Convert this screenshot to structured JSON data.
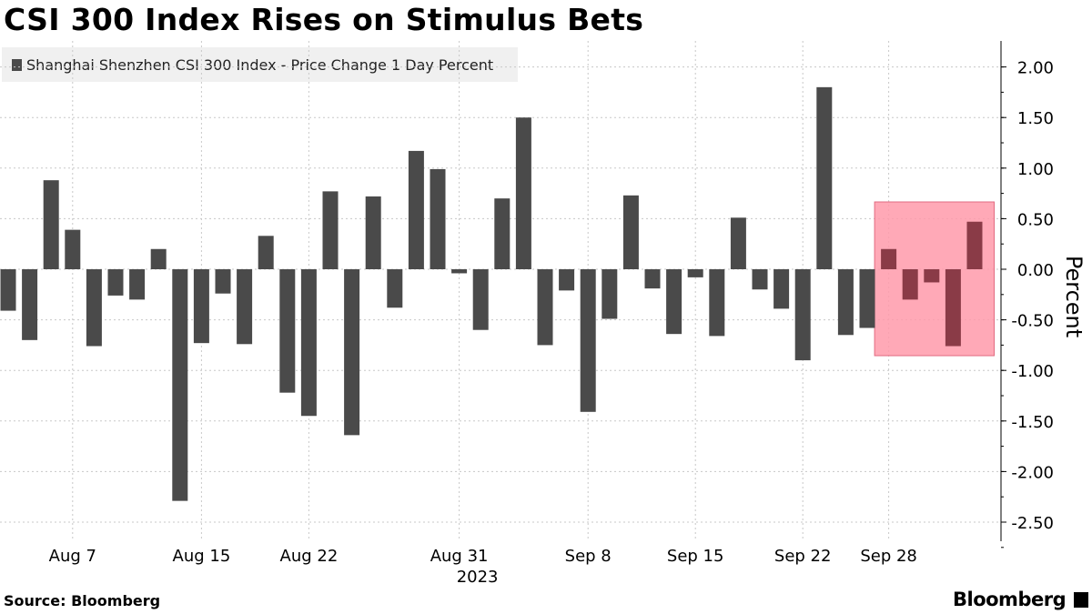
{
  "title": "CSI 300 Index Rises on Stimulus Bets",
  "source": "Source: Bloomberg",
  "brand": "Bloomberg",
  "chart_data": {
    "type": "bar",
    "title": "CSI 300 Index Rises on Stimulus Bets",
    "ylabel": "Percent",
    "xlabel": "",
    "ylim": [
      -2.75,
      2.2
    ],
    "yticks": [
      2.0,
      1.5,
      1.0,
      0.5,
      0.0,
      -0.5,
      -1.0,
      -1.5,
      -2.0,
      -2.5
    ],
    "ytick_labels": [
      "2.00",
      "1.50",
      "1.00",
      "0.50",
      "0.00",
      "-0.50",
      "-1.00",
      "-1.50",
      "-2.00",
      "-2.50"
    ],
    "grid": true,
    "legend_position": "top-left",
    "x_tick_labels": [
      "Aug 7",
      "Aug 15",
      "Aug 22",
      "Aug 31",
      "Sep 8",
      "Sep 15",
      "Sep 22",
      "Sep 28"
    ],
    "x_tick_categories": [
      "Aug 7",
      "Aug 15",
      "Aug 22",
      "Aug 31",
      "Sep 8",
      "Sep 15",
      "Sep 22",
      "Sep 28"
    ],
    "year_label": "2023",
    "categories": [
      "Aug 2",
      "Aug 3",
      "Aug 4",
      "Aug 7",
      "Aug 8",
      "Aug 9",
      "Aug 10",
      "Aug 11",
      "Aug 14",
      "Aug 15",
      "Aug 16",
      "Aug 17",
      "Aug 18",
      "Aug 21",
      "Aug 22",
      "Aug 23",
      "Aug 24",
      "Aug 25",
      "Aug 28",
      "Aug 29",
      "Aug 30",
      "Aug 31",
      "Sep 1",
      "Sep 4",
      "Sep 5",
      "Sep 6",
      "Sep 7",
      "Sep 8",
      "Sep 11",
      "Sep 12",
      "Sep 13",
      "Sep 14",
      "Sep 15",
      "Sep 18",
      "Sep 19",
      "Sep 20",
      "Sep 21",
      "Sep 22",
      "Sep 25",
      "Sep 26",
      "Sep 27",
      "Sep 28",
      "Sep 29",
      "Oct 2",
      "Oct 3",
      "Oct 4"
    ],
    "series": [
      {
        "name": "Shanghai Shenzhen CSI 300 Index - Price Change 1 Day Percent",
        "color": "#4a4a4a",
        "values": [
          -0.41,
          -0.7,
          0.88,
          0.39,
          -0.76,
          -0.26,
          -0.3,
          0.2,
          -2.29,
          -0.73,
          -0.24,
          -0.74,
          0.33,
          -1.22,
          -1.45,
          0.77,
          -1.64,
          0.72,
          -0.38,
          1.17,
          0.99,
          -0.04,
          -0.6,
          0.7,
          1.5,
          -0.75,
          -0.21,
          -1.41,
          -0.49,
          0.73,
          -0.19,
          -0.64,
          -0.08,
          -0.66,
          0.51,
          -0.2,
          -0.39,
          -0.9,
          1.8,
          -0.65,
          -0.58,
          0.2,
          -0.3,
          -0.13,
          -0.76,
          0.47
        ]
      }
    ],
    "highlight": {
      "from": "Sep 28",
      "to": "Oct 4",
      "fill": "#ff9aaa",
      "stroke": "#e26a80",
      "bar_color": "#8a3b47"
    }
  }
}
